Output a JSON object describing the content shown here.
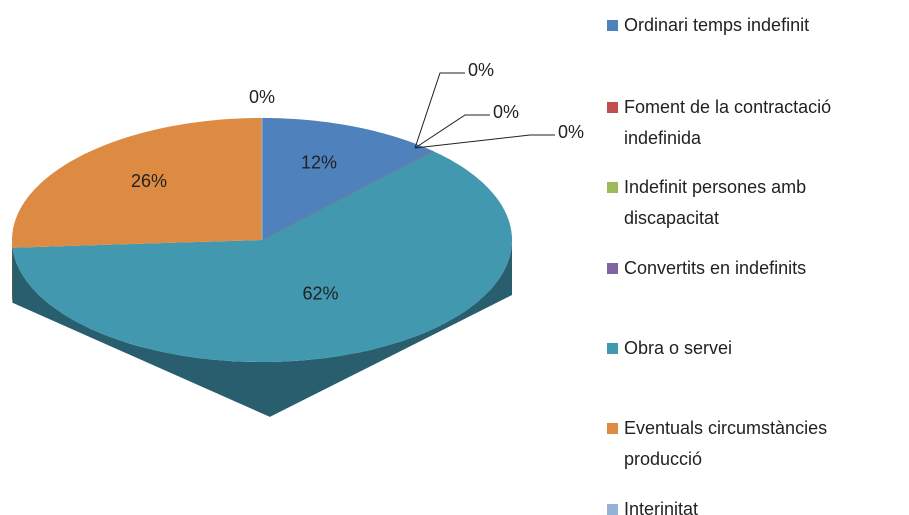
{
  "chart_data": {
    "type": "pie",
    "categories": [
      "Ordinari temps indefinit",
      "Foment de la contractació indefinida",
      "Indefinit persones amb discapacitat",
      "Convertits en indefinits",
      "Obra o servei",
      "Eventuals circumstàncies producció",
      "Interinitat"
    ],
    "values": [
      12,
      0,
      0,
      0,
      62,
      26,
      0
    ],
    "value_labels": [
      "12%",
      "0%",
      "0%",
      "0%",
      "62%",
      "26%",
      "0%"
    ],
    "colors": [
      "#4f81bd",
      "#c0504d",
      "#9bbb59",
      "#8064a2",
      "#4198af",
      "#dd8a42",
      "#95b3d7"
    ],
    "legend": "right"
  }
}
